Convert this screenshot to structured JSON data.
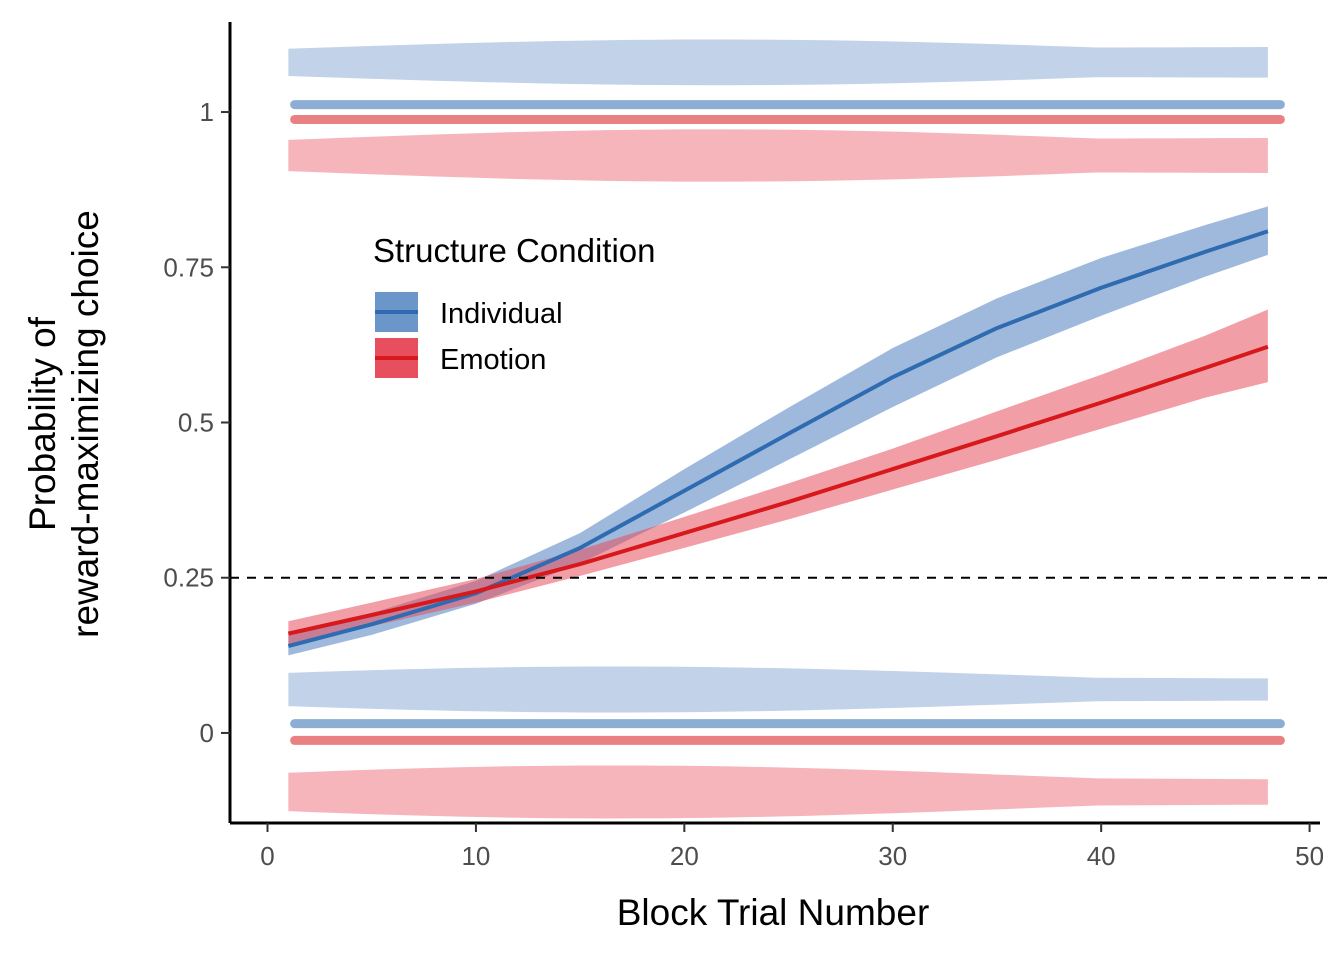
{
  "chart_data": {
    "type": "line",
    "xlabel": "Block Trial Number",
    "ylabel_lines": [
      "Probability of",
      "reward-maximizing choice"
    ],
    "xlim": [
      -1.8,
      50.5
    ],
    "ylim": [
      -0.145,
      1.145
    ],
    "x_ticks": [
      0,
      10,
      20,
      30,
      40,
      50
    ],
    "x_tick_labels": [
      "0",
      "10",
      "20",
      "30",
      "40",
      "50"
    ],
    "y_ticks": [
      0,
      0.25,
      0.5,
      0.75,
      1
    ],
    "y_tick_labels": [
      "0",
      "0.25",
      "0.5",
      "0.75",
      "1"
    ],
    "grid": false,
    "reference_line": {
      "y": 0.25,
      "style": "dashed",
      "color": "#000000"
    },
    "legend": {
      "title": "Structure Condition",
      "position": "inside-top-left",
      "entries": [
        "Individual",
        "Emotion"
      ]
    },
    "series": [
      {
        "name": "Individual",
        "color": "#2E6BB0",
        "band_color": "#4F7FBF",
        "x": [
          1,
          5,
          10,
          15,
          20,
          25,
          30,
          35,
          40,
          45,
          48
        ],
        "fit": [
          0.14,
          0.175,
          0.225,
          0.298,
          0.39,
          0.482,
          0.573,
          0.652,
          0.717,
          0.775,
          0.808
        ],
        "lower": [
          0.125,
          0.158,
          0.208,
          0.273,
          0.355,
          0.44,
          0.525,
          0.605,
          0.672,
          0.735,
          0.77
        ],
        "upper": [
          0.158,
          0.193,
          0.245,
          0.322,
          0.425,
          0.524,
          0.62,
          0.7,
          0.765,
          0.818,
          0.848
        ],
        "raw_y": [
          0.015,
          1.012
        ],
        "violin_centers": [
          0.07,
          1.08
        ],
        "violin_half_widths": [
          0.033,
          0.035
        ]
      },
      {
        "name": "Emotion",
        "color": "#D7191C",
        "band_color": "#E84F5E",
        "x": [
          1,
          5,
          10,
          15,
          20,
          25,
          30,
          35,
          40,
          45,
          48
        ],
        "fit": [
          0.16,
          0.19,
          0.228,
          0.272,
          0.322,
          0.372,
          0.425,
          0.478,
          0.532,
          0.588,
          0.622
        ],
        "lower": [
          0.142,
          0.172,
          0.21,
          0.253,
          0.298,
          0.344,
          0.392,
          0.44,
          0.49,
          0.54,
          0.565
        ],
        "upper": [
          0.18,
          0.21,
          0.248,
          0.295,
          0.348,
          0.402,
          0.458,
          0.518,
          0.577,
          0.64,
          0.682
        ],
        "raw_y": [
          -0.012,
          0.988
        ],
        "violin_centers": [
          -0.095,
          0.93
        ],
        "violin_half_widths": [
          0.038,
          0.04
        ]
      }
    ]
  }
}
